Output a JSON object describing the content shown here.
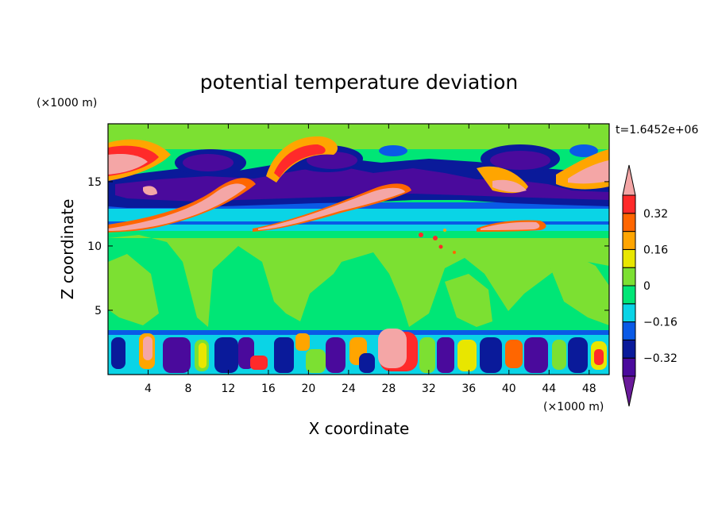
{
  "chart_data": {
    "type": "heatmap",
    "title": "potential temperature deviation",
    "xlabel": "X coordinate",
    "ylabel": "Z coordinate",
    "x_unit": "(×1000 m)",
    "y_unit": "(×1000 m)",
    "time_label": "t=1.6452e+06",
    "xlim": [
      0,
      50
    ],
    "ylim": [
      0,
      19.5
    ],
    "xticks": [
      4,
      8,
      12,
      16,
      20,
      24,
      28,
      32,
      36,
      40,
      44,
      48
    ],
    "yticks": [
      5,
      10,
      15
    ],
    "colorbar": {
      "levels": [
        -0.44,
        -0.4,
        -0.32,
        -0.24,
        -0.16,
        -0.08,
        0,
        0.08,
        0.16,
        0.24,
        0.32,
        0.4,
        0.44
      ],
      "ticks": [
        0.32,
        0.16,
        0,
        -0.16,
        -0.32
      ],
      "tick_labels": [
        "0.32",
        "0.16",
        "0",
        "−0.16",
        "−0.32"
      ],
      "colors": [
        "#6a1a9a",
        "#4a0a9c",
        "#0a1a9a",
        "#0a5ae6",
        "#0ad4e6",
        "#00e676",
        "#7ce032",
        "#e8e600",
        "#ffa500",
        "#ff6600",
        "#ff2a2a",
        "#f4a6a6"
      ]
    },
    "field_features": {
      "lower_layer_z_range": [
        0,
        3.5
      ],
      "mid_layer_value": "near 0",
      "upper_layer_z_range": [
        11,
        19.5
      ],
      "warm_bands_z": [
        11.5,
        17
      ],
      "cold_cores_z": [
        13.5,
        17
      ]
    }
  }
}
